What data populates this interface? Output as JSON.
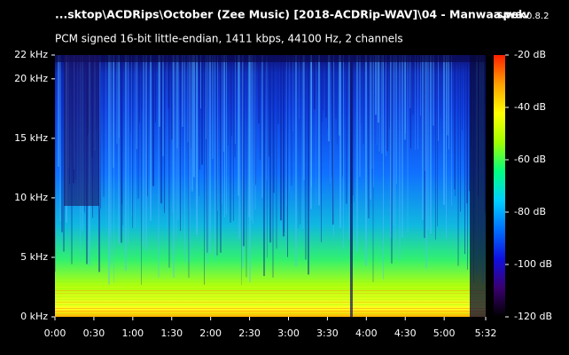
{
  "chart_data": {
    "type": "spectrogram",
    "title": "...sktop\\ACDRips\\October (Zee Music) [2018-ACDRip-WAV]\\04 - Manwaa.wav",
    "app_name": "spek",
    "app_version": "0.8.2",
    "subtitle": "PCM signed 16-bit little-endian, 1411 kbps, 44100 Hz, 2 channels",
    "xlim": [
      0,
      332
    ],
    "xticks": [
      {
        "value": 0,
        "label": "0:00"
      },
      {
        "value": 30,
        "label": "0:30"
      },
      {
        "value": 60,
        "label": "1:00"
      },
      {
        "value": 90,
        "label": "1:30"
      },
      {
        "value": 120,
        "label": "2:00"
      },
      {
        "value": 150,
        "label": "2:30"
      },
      {
        "value": 180,
        "label": "3:00"
      },
      {
        "value": 210,
        "label": "3:30"
      },
      {
        "value": 240,
        "label": "4:00"
      },
      {
        "value": 270,
        "label": "4:30"
      },
      {
        "value": 300,
        "label": "5:00"
      },
      {
        "value": 332,
        "label": "5:32"
      }
    ],
    "ylim": [
      0,
      22
    ],
    "yticks": [
      {
        "value": 0,
        "label": "0 kHz"
      },
      {
        "value": 5,
        "label": "5 kHz"
      },
      {
        "value": 10,
        "label": "10 kHz"
      },
      {
        "value": 15,
        "label": "15 kHz"
      },
      {
        "value": 20,
        "label": "20 kHz"
      },
      {
        "value": 22,
        "label": "22 kHz"
      }
    ],
    "colorbar": {
      "lim": [
        -120,
        -20
      ],
      "ticks": [
        {
          "value": -20,
          "label": "-20 dB"
        },
        {
          "value": -40,
          "label": "-40 dB"
        },
        {
          "value": -60,
          "label": "-60 dB"
        },
        {
          "value": -80,
          "label": "-80 dB"
        },
        {
          "value": -100,
          "label": "-100 dB"
        },
        {
          "value": -120,
          "label": "-120 dB"
        }
      ],
      "colormap": [
        "#000000",
        "#3a0070",
        "#1010e0",
        "#0070ff",
        "#00d0ff",
        "#00ff80",
        "#a0ff00",
        "#ffff00",
        "#ffa000",
        "#ff2000"
      ]
    }
  }
}
